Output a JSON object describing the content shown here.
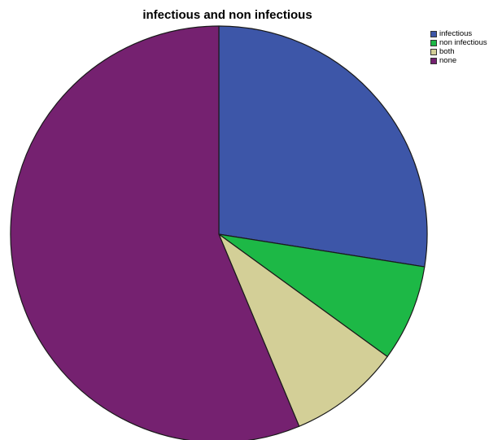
{
  "chart_data": {
    "type": "pie",
    "title": "infectious and non infectious",
    "categories": [
      "infectious",
      "non infectious",
      "both",
      "none"
    ],
    "values": [
      27.5,
      7.5,
      8.7,
      56.3
    ],
    "colors": [
      "#3D56A8",
      "#1DB846",
      "#D3CF97",
      "#752170"
    ],
    "legend": "top-right",
    "start_angle_deg": 0,
    "direction": "clockwise"
  }
}
